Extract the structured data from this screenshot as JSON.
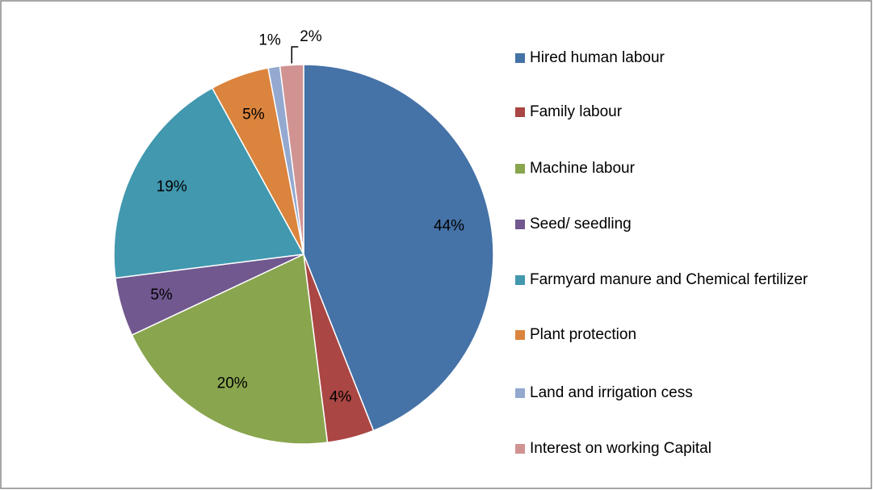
{
  "chart_data": {
    "type": "pie",
    "categories": [
      "Hired human labour",
      "Family labour",
      "Machine labour",
      "Seed/ seedling",
      "Farmyard manure and Chemical fertilizer",
      "Plant protection",
      "Land and irrigation cess",
      "Interest on working Capital"
    ],
    "values": [
      44,
      4,
      20,
      5,
      19,
      5,
      1,
      2
    ],
    "value_labels": [
      "44%",
      "4%",
      "20%",
      "5%",
      "19%",
      "5%",
      "1%",
      "2%"
    ],
    "colors": [
      "#4572a7",
      "#aa4643",
      "#89a54e",
      "#71588f",
      "#4198af",
      "#db843d",
      "#93a9cf",
      "#d19392"
    ],
    "legend": "right"
  }
}
